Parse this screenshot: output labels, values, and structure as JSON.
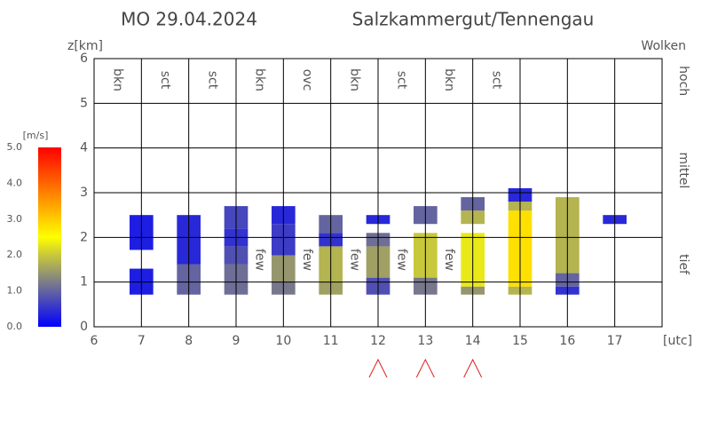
{
  "chart_data": {
    "type": "cloud",
    "title": "MO 29.04.2024",
    "subtitle": "Salzkammergut/Tennengau",
    "ylabel": "z[km]",
    "right_label": "Wolken",
    "xlabel": "[utc]",
    "level_labels": [
      "hoch",
      "mittel",
      "tief"
    ],
    "xlim": [
      6,
      18
    ],
    "xticks": [
      6,
      7,
      8,
      9,
      10,
      11,
      12,
      13,
      14,
      15,
      16,
      17
    ],
    "ylim": [
      0,
      6
    ],
    "yticks": [
      0,
      1,
      2,
      3,
      4,
      5,
      6
    ],
    "grid": true,
    "cloud_cover": [
      {
        "x": 6.5,
        "label": "bkn",
        "color": "#2020d0"
      },
      {
        "x": 7.5,
        "label": "sct",
        "color": "#b0b0e8"
      },
      {
        "x": 8.5,
        "label": "sct",
        "color": "#8080e0"
      },
      {
        "x": 9.5,
        "label": "bkn",
        "color": "#2020d0"
      },
      {
        "x": 10.5,
        "label": "ovc",
        "color": "#2020d0"
      },
      {
        "x": 11.5,
        "label": "bkn",
        "color": "#2020d0"
      },
      {
        "x": 12.5,
        "label": "sct",
        "color": "#7070d8"
      },
      {
        "x": 13.5,
        "label": "bkn",
        "color": "#2020d0"
      },
      {
        "x": 14.5,
        "label": "sct",
        "color": "#8080e0"
      }
    ],
    "low_cover": [
      {
        "x": 9.5,
        "z": 1.5,
        "label": "few"
      },
      {
        "x": 10.5,
        "z": 1.5,
        "label": "few"
      },
      {
        "x": 11.5,
        "z": 1.5,
        "label": "few"
      },
      {
        "x": 12.5,
        "z": 1.5,
        "label": "few"
      },
      {
        "x": 13.5,
        "z": 1.5,
        "label": "few"
      }
    ],
    "low_cover_color": "#d8d8f0",
    "columns": [
      {
        "x": 7,
        "segments": [
          [
            0.72,
            1.3,
            0.3
          ],
          [
            1.72,
            2.5,
            0.3
          ]
        ]
      },
      {
        "x": 8,
        "segments": [
          [
            0.72,
            1.4,
            1.0
          ],
          [
            1.4,
            2.5,
            0.4
          ]
        ]
      },
      {
        "x": 9,
        "segments": [
          [
            0.72,
            1.4,
            1.1
          ],
          [
            1.4,
            1.8,
            0.8
          ],
          [
            1.8,
            2.2,
            0.5
          ],
          [
            2.2,
            2.7,
            0.7
          ]
        ]
      },
      {
        "x": 10,
        "segments": [
          [
            0.72,
            1.0,
            1.2
          ],
          [
            1.0,
            1.6,
            1.5
          ],
          [
            1.6,
            2.3,
            0.6
          ],
          [
            2.3,
            2.7,
            0.4
          ]
        ]
      },
      {
        "x": 11,
        "segments": [
          [
            0.72,
            1.0,
            1.6
          ],
          [
            1.0,
            1.8,
            1.8
          ],
          [
            1.8,
            2.1,
            0.5
          ],
          [
            2.1,
            2.5,
            1.0
          ]
        ]
      },
      {
        "x": 12,
        "segments": [
          [
            0.72,
            1.1,
            0.8
          ],
          [
            1.1,
            1.8,
            1.6
          ],
          [
            1.8,
            2.1,
            1.1
          ],
          [
            2.3,
            2.5,
            0.4
          ]
        ]
      },
      {
        "x": 13,
        "segments": [
          [
            0.72,
            1.1,
            1.2
          ],
          [
            1.1,
            2.1,
            2.0
          ],
          [
            2.3,
            2.7,
            1.0
          ]
        ]
      },
      {
        "x": 14,
        "segments": [
          [
            0.72,
            0.9,
            1.5
          ],
          [
            0.9,
            2.1,
            2.3
          ],
          [
            2.3,
            2.6,
            1.8
          ],
          [
            2.6,
            2.9,
            1.0
          ]
        ]
      },
      {
        "x": 15,
        "segments": [
          [
            0.72,
            0.9,
            1.8
          ],
          [
            0.9,
            2.6,
            2.8
          ],
          [
            2.6,
            2.8,
            1.8
          ],
          [
            2.8,
            3.1,
            0.4
          ]
        ]
      },
      {
        "x": 16,
        "segments": [
          [
            0.72,
            0.9,
            0.5
          ],
          [
            0.9,
            1.2,
            1.0
          ],
          [
            1.2,
            2.9,
            1.8
          ]
        ]
      },
      {
        "x": 17,
        "segments": [
          [
            2.3,
            2.5,
            0.4
          ]
        ]
      }
    ],
    "colorbar": {
      "label": "[m/s]",
      "lim": [
        0,
        5
      ],
      "ticks": [
        {
          "value": 0,
          "label": "0.0"
        },
        {
          "value": 1,
          "label": "1.0"
        },
        {
          "value": 2,
          "label": "2.0"
        },
        {
          "value": 3,
          "label": "3.0"
        },
        {
          "value": 4,
          "label": "4.0"
        },
        {
          "value": 5,
          "label": "5.0"
        }
      ],
      "colormap": [
        [
          0,
          "#0000ff"
        ],
        [
          1,
          "#6464a0"
        ],
        [
          2,
          "#c8c83c"
        ],
        [
          2.5,
          "#ffff00"
        ],
        [
          3.5,
          "#ff9900"
        ],
        [
          5,
          "#ff0000"
        ]
      ]
    },
    "markers": {
      "x": [
        12,
        13,
        14
      ],
      "color": "#e02020"
    }
  }
}
